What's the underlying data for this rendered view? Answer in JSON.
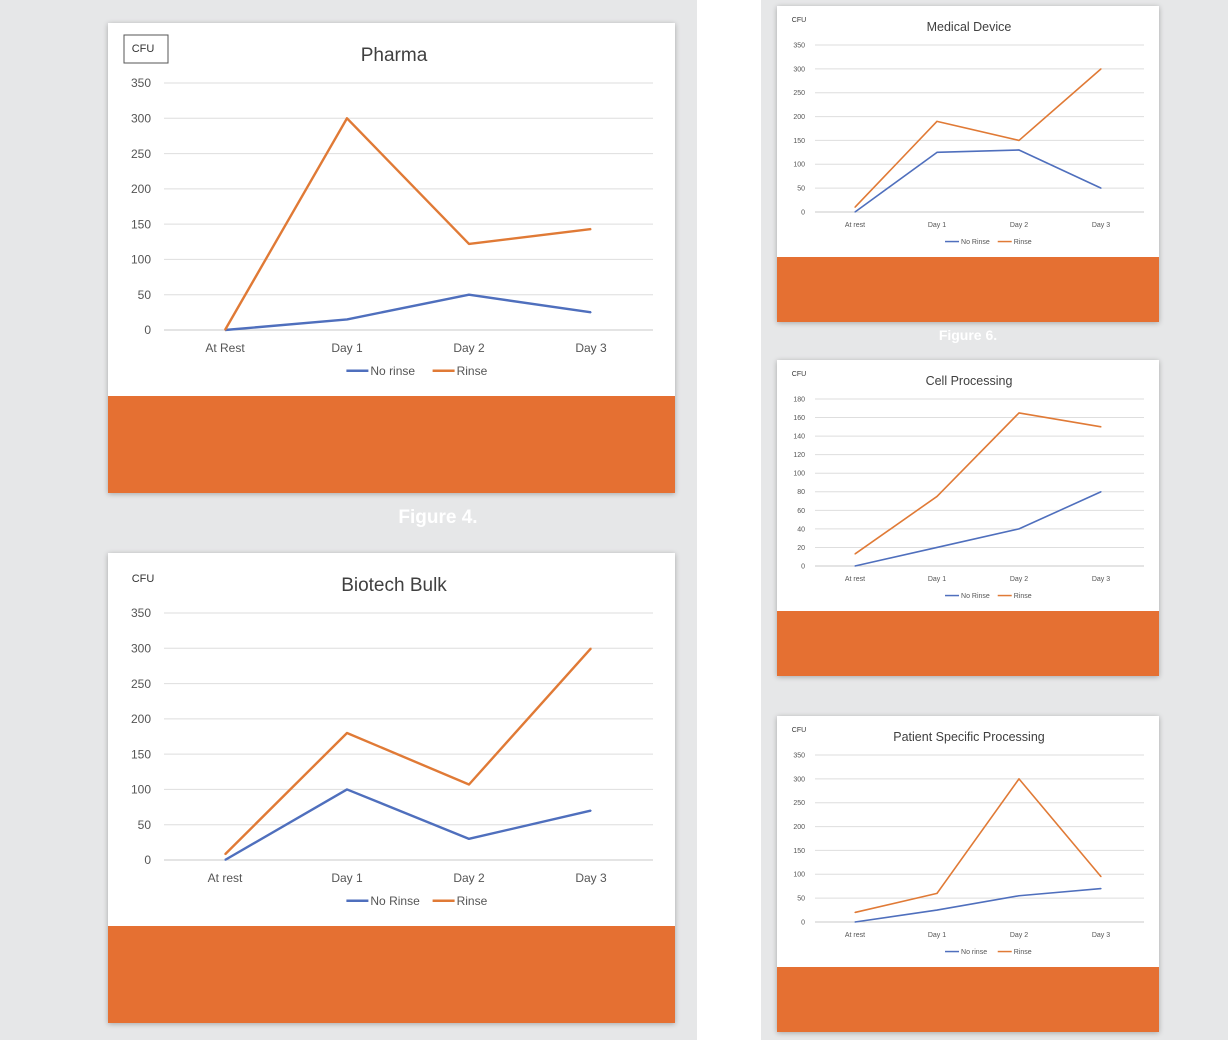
{
  "colors": {
    "page_bg": "#e6e7e8",
    "rinse": "#e07a36",
    "no_rinse": "#4f6fbd",
    "band": "#e57032",
    "grid": "#dedede",
    "text": "#555555",
    "caption": "#ffffff"
  },
  "captions": {
    "left": "Figure 4.",
    "right": "Figure 6."
  },
  "chart_data": [
    {
      "id": "pharma",
      "type": "line",
      "title": "Pharma",
      "ylabel": "CFU",
      "ylabel_boxed": true,
      "categories": [
        "At Rest",
        "Day 1",
        "Day 2",
        "Day 3"
      ],
      "ylim": [
        0,
        350
      ],
      "yticks": [
        0,
        50,
        100,
        150,
        200,
        250,
        300,
        350
      ],
      "grid": true,
      "legend": "bottom",
      "series": [
        {
          "name": "No rinse",
          "color": "#4f6fbd",
          "values": [
            0,
            15,
            50,
            25
          ]
        },
        {
          "name": "Rinse",
          "color": "#e07a36",
          "values": [
            0,
            300,
            122,
            143
          ]
        }
      ]
    },
    {
      "id": "biotech-bulk",
      "type": "line",
      "title": "Biotech Bulk",
      "ylabel": "CFU",
      "ylabel_boxed": false,
      "categories": [
        "At rest",
        "Day 1",
        "Day 2",
        "Day 3"
      ],
      "ylim": [
        0,
        350
      ],
      "yticks": [
        0,
        50,
        100,
        150,
        200,
        250,
        300,
        350
      ],
      "grid": true,
      "legend": "bottom",
      "series": [
        {
          "name": "No Rinse",
          "color": "#4f6fbd",
          "values": [
            0,
            100,
            30,
            70
          ]
        },
        {
          "name": "Rinse",
          "color": "#e07a36",
          "values": [
            8,
            180,
            107,
            300
          ]
        }
      ]
    },
    {
      "id": "medical-device",
      "type": "line",
      "title": "Medical Device",
      "ylabel": "CFU",
      "ylabel_boxed": false,
      "categories": [
        "At rest",
        "Day 1",
        "Day 2",
        "Day 3"
      ],
      "ylim": [
        0,
        350
      ],
      "yticks": [
        0,
        50,
        100,
        150,
        200,
        250,
        300,
        350
      ],
      "grid": true,
      "legend": "bottom",
      "series": [
        {
          "name": "No Rinse",
          "color": "#4f6fbd",
          "values": [
            0,
            125,
            130,
            50
          ]
        },
        {
          "name": "Rinse",
          "color": "#e07a36",
          "values": [
            10,
            190,
            150,
            300
          ]
        }
      ]
    },
    {
      "id": "cell-processing",
      "type": "line",
      "title": "Cell Processing",
      "ylabel": "CFU",
      "ylabel_boxed": false,
      "categories": [
        "At rest",
        "Day 1",
        "Day 2",
        "Day 3"
      ],
      "ylim": [
        0,
        180
      ],
      "yticks": [
        0,
        20,
        40,
        60,
        80,
        100,
        120,
        140,
        160,
        180
      ],
      "grid": true,
      "legend": "bottom",
      "series": [
        {
          "name": "No Rinse",
          "color": "#4f6fbd",
          "values": [
            0,
            20,
            40,
            80
          ]
        },
        {
          "name": "Rinse",
          "color": "#e07a36",
          "values": [
            13,
            75,
            165,
            150
          ]
        }
      ]
    },
    {
      "id": "patient-specific-processing",
      "type": "line",
      "title": "Patient Specific Processing",
      "ylabel": "CFU",
      "ylabel_boxed": false,
      "categories": [
        "At rest",
        "Day 1",
        "Day 2",
        "Day 3"
      ],
      "ylim": [
        0,
        350
      ],
      "yticks": [
        0,
        50,
        100,
        150,
        200,
        250,
        300,
        350
      ],
      "grid": true,
      "legend": "bottom",
      "series": [
        {
          "name": "No rinse",
          "color": "#4f6fbd",
          "values": [
            0,
            25,
            55,
            70
          ]
        },
        {
          "name": "Rinse",
          "color": "#e07a36",
          "values": [
            20,
            60,
            300,
            95
          ]
        }
      ]
    }
  ]
}
